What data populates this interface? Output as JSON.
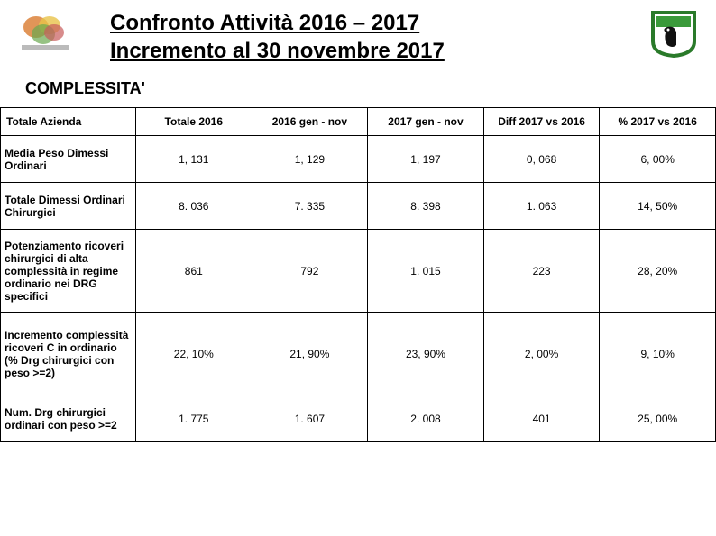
{
  "header": {
    "title_line1": "Confronto Attività 2016 – 2017",
    "title_line2": "Incremento al 30 novembre 2017"
  },
  "subtitle": "COMPLESSITA'",
  "table": {
    "columns": [
      "Totale Azienda",
      "Totale 2016",
      "2016 gen - nov",
      "2017 gen - nov",
      "Diff 2017 vs 2016",
      "% 2017 vs 2016"
    ],
    "rows": [
      {
        "label": "Media Peso Dimessi Ordinari",
        "cells": [
          "1, 131",
          "1, 129",
          "1, 197",
          "0, 068",
          "6, 00%"
        ],
        "class": "med-row"
      },
      {
        "label": "Totale Dimessi Ordinari Chirurgici",
        "cells": [
          "8. 036",
          "7. 335",
          "8. 398",
          "1. 063",
          "14, 50%"
        ],
        "class": "med-row"
      },
      {
        "label": "Potenziamento ricoveri chirurgici di alta complessità in regime ordinario nei DRG specifici",
        "cells": [
          "861",
          "792",
          "1. 015",
          "223",
          "28, 20%"
        ],
        "class": "tall-row"
      },
      {
        "label": "Incremento complessità ricoveri C in ordinario (% Drg chirurgici con peso >=2)",
        "cells": [
          "22, 10%",
          "21, 90%",
          "23, 90%",
          "2, 00%",
          "9, 10%"
        ],
        "class": "tall-row"
      },
      {
        "label": "Num. Drg chirurgici ordinari con peso >=2",
        "cells": [
          "1. 775",
          "1. 607",
          "2. 008",
          "401",
          "25, 00%"
        ],
        "class": "med-row"
      }
    ]
  },
  "colors": {
    "shield_border": "#2a7a2a",
    "shield_fill": "#ffffff",
    "shield_band": "#3a9a3a",
    "title_color": "#000000"
  }
}
